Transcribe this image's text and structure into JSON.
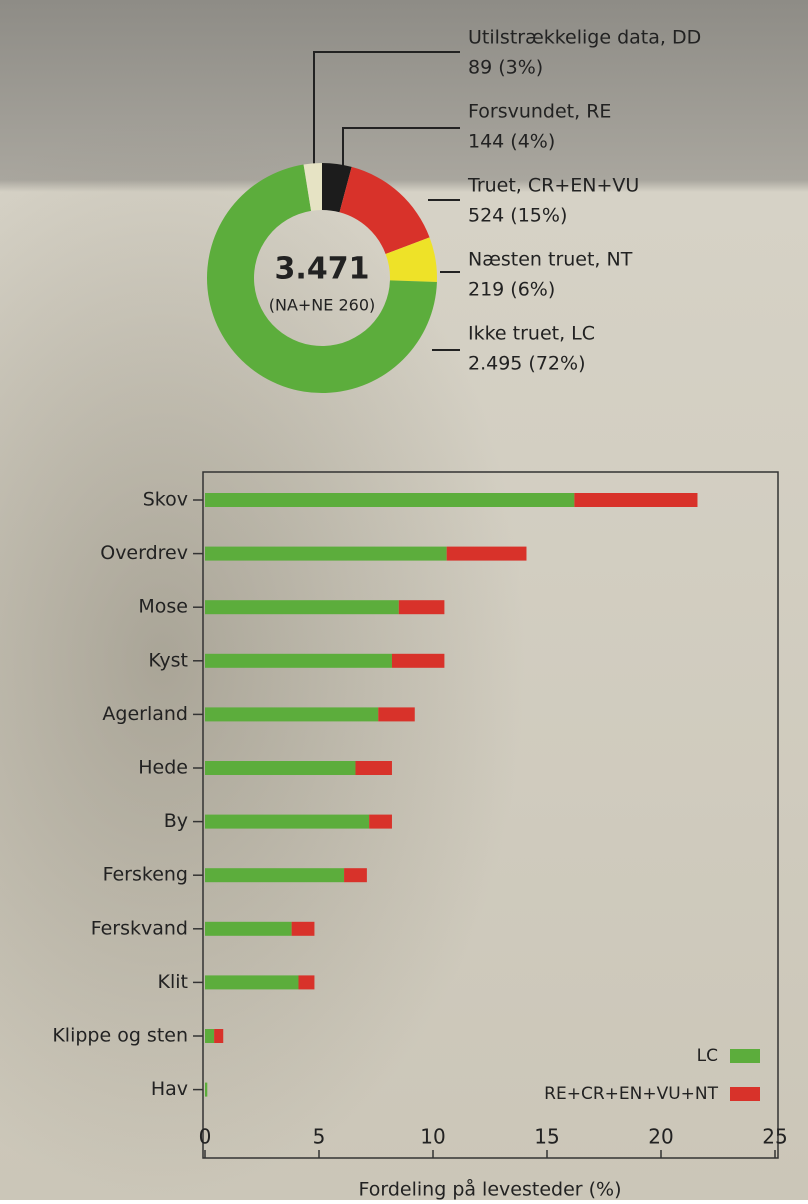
{
  "chart_data": [
    {
      "type": "donut",
      "categories": [
        "Forsvundet, RE",
        "Truet, CR+EN+VU",
        "Næsten truet, NT",
        "Ikke truet, LC",
        "Utilstrækkelige data, DD"
      ],
      "values": [
        144,
        524,
        219,
        2495,
        89
      ],
      "value_labels": [
        "144 (4%)",
        "524 (15%)",
        "219 (6%)",
        "2.495 (72%)",
        "89 (3%)"
      ],
      "colors": [
        "#1c1c1c",
        "#d8322a",
        "#eee228",
        "#5cad3c",
        "#e6e3c4"
      ],
      "center_label": "3.471",
      "center_sublabel": "(NA+NE 260)"
    },
    {
      "type": "stacked-barh",
      "categories": [
        "Skov",
        "Overdrev",
        "Mose",
        "Kyst",
        "Agerland",
        "Hede",
        "By",
        "Ferskeng",
        "Ferskvand",
        "Klit",
        "Klippe og sten",
        "Hav"
      ],
      "series": [
        {
          "name": "LC",
          "color": "#5cad3c",
          "values": [
            16.2,
            10.6,
            8.5,
            8.2,
            7.6,
            6.6,
            7.2,
            6.1,
            3.8,
            4.1,
            0.4,
            0.1
          ]
        },
        {
          "name": "RE+CR+EN+VU+NT",
          "color": "#d8322a",
          "values": [
            5.4,
            3.5,
            2.0,
            2.3,
            1.6,
            1.6,
            1.0,
            1.0,
            1.0,
            0.7,
            0.4,
            0
          ]
        }
      ],
      "xlim": [
        0,
        25
      ],
      "xticks": [
        0,
        5,
        10,
        15,
        20,
        25
      ],
      "xlabel": "Fordeling på levesteder (%)",
      "legend": "lower right"
    }
  ]
}
